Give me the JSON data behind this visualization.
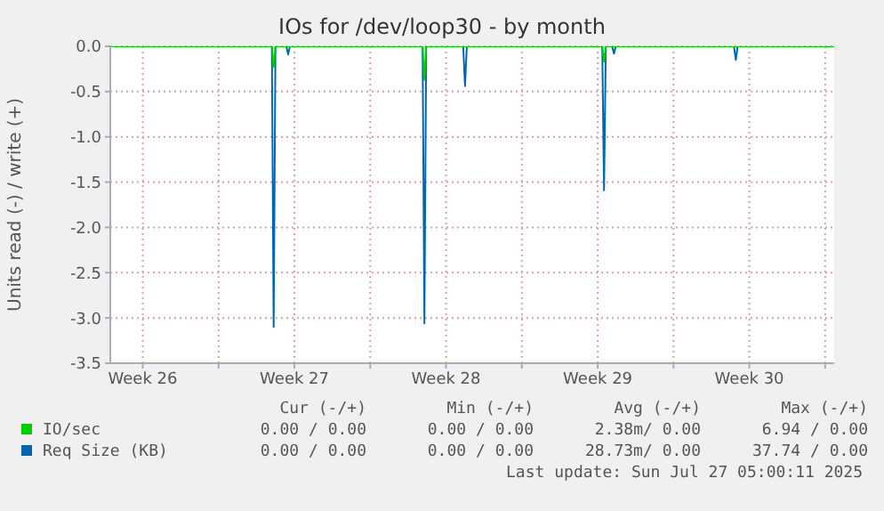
{
  "chart_data": {
    "type": "line",
    "title": "IOs for /dev/loop30 - by month",
    "ylabel": "Units read (-) / write (+)",
    "xlim": [
      "2025-06-25T00:00",
      "2025-07-28T10:00"
    ],
    "xticks": [
      {
        "value": "2025-06-26T12:00",
        "label": "Week 26"
      },
      {
        "value": "2025-06-30",
        "label": null
      },
      {
        "value": "2025-07-03T12:00",
        "label": "Week 27"
      },
      {
        "value": "2025-07-07",
        "label": null
      },
      {
        "value": "2025-07-10T12:00",
        "label": "Week 28"
      },
      {
        "value": "2025-07-14",
        "label": null
      },
      {
        "value": "2025-07-17T12:00",
        "label": "Week 29"
      },
      {
        "value": "2025-07-21",
        "label": null
      },
      {
        "value": "2025-07-24T12:00",
        "label": "Week 30"
      },
      {
        "value": "2025-07-28",
        "label": null
      }
    ],
    "ylim": [
      -3.5,
      0
    ],
    "yticks": [
      {
        "value": -3.5,
        "label": "-3.5"
      },
      {
        "value": -3,
        "label": "-3.0"
      },
      {
        "value": -2.5,
        "label": "-2.5"
      },
      {
        "value": -2,
        "label": "-2.0"
      },
      {
        "value": -1.5,
        "label": "-1.5"
      },
      {
        "value": -1,
        "label": "-1.0"
      },
      {
        "value": -0.5,
        "label": "-0.5"
      },
      {
        "value": 0,
        "label": "0.0"
      }
    ],
    "grid": true,
    "legend": "bottom",
    "marker": "none",
    "series": [
      {
        "name": "IO/sec",
        "color": "#00cc00",
        "x": [
          "2025-06-25T00:00",
          "2025-07-02T11:00",
          "2025-07-02T13:00",
          "2025-07-02T15:00",
          "2025-07-09T10:00",
          "2025-07-09T12:00",
          "2025-07-09T14:00",
          "2025-07-17T17:00",
          "2025-07-17T19:00",
          "2025-07-17T21:00",
          "2025-07-28T10:00"
        ],
        "values": [
          0,
          0,
          -0.23,
          0,
          0,
          -0.37,
          0,
          0,
          -0.17,
          0,
          0
        ]
      },
      {
        "name": "Req Size (KB)",
        "color": "#0066b3",
        "x": [
          "2025-06-25T00:00",
          "2025-07-02T11:00",
          "2025-07-02T13:00",
          "2025-07-02T15:00",
          "2025-07-03T03:00",
          "2025-07-03T05:00",
          "2025-07-03T07:00",
          "2025-07-09T10:00",
          "2025-07-09T12:00",
          "2025-07-09T14:00",
          "2025-07-11T07:00",
          "2025-07-11T09:00",
          "2025-07-11T11:00",
          "2025-07-17T17:00",
          "2025-07-17T19:00",
          "2025-07-17T21:00",
          "2025-07-18T04:00",
          "2025-07-18T06:00",
          "2025-07-18T08:00",
          "2025-07-23T19:00",
          "2025-07-23T21:00",
          "2025-07-23T23:00",
          "2025-07-28T10:00"
        ],
        "values": [
          0,
          0,
          -3.1,
          0,
          0,
          -0.09,
          0,
          0,
          -3.06,
          0,
          0,
          -0.44,
          0,
          0,
          -1.59,
          0,
          0,
          -0.08,
          0,
          0,
          -0.15,
          0,
          0
        ]
      }
    ],
    "annotations": [
      "Cur (-/+)",
      "Min (-/+)",
      "Avg (-/+)",
      "Max (-/+)",
      "0.00 / 0.00",
      "0.00 / 0.00",
      "2.38m/ 0.00",
      "6.94 / 0.00",
      "0.00 / 0.00",
      "0.00 / 0.00",
      "28.73m/ 0.00",
      "37.74 / 0.00",
      "Last update: Sun Jul 27 05:00:11 2025"
    ]
  }
}
